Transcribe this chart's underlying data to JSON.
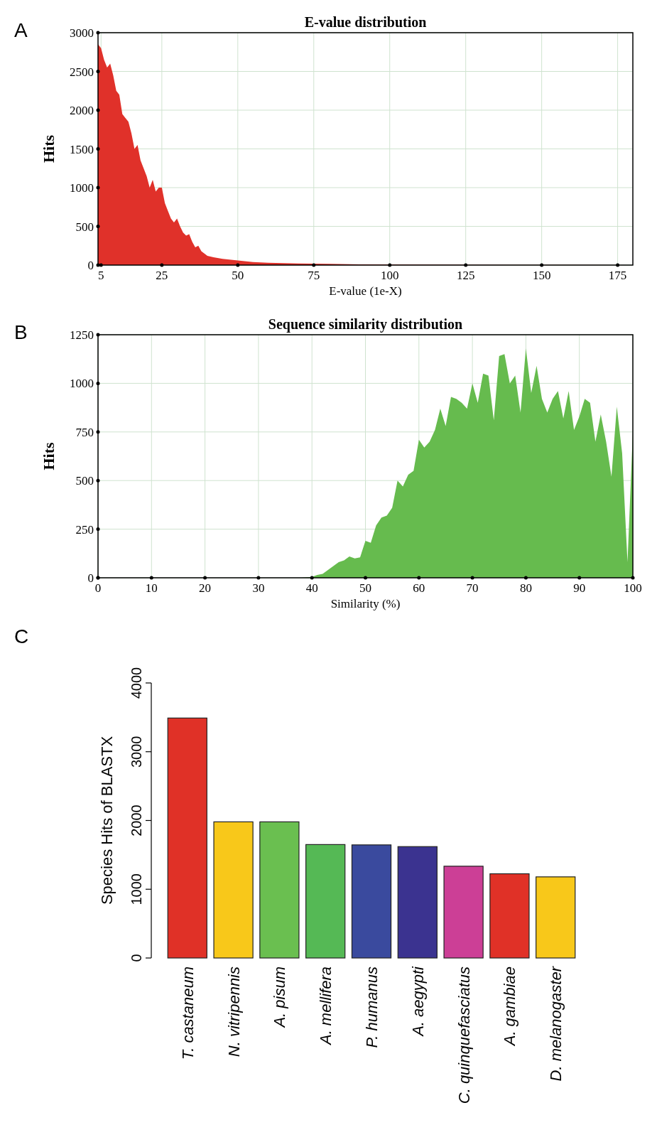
{
  "chart_data": [
    {
      "type": "area",
      "title": "E-value distribution",
      "xlabel": "E-value (1e-X)",
      "ylabel": "Hits",
      "annotations": [
        "A"
      ],
      "grid": true,
      "xlim": [
        4,
        180
      ],
      "xticks": [
        5,
        25,
        50,
        75,
        100,
        125,
        150,
        175
      ],
      "ylim": [
        0,
        3000
      ],
      "yticks": [
        0,
        500,
        1000,
        1500,
        2000,
        2500,
        3000
      ],
      "x": [
        4,
        5,
        6,
        7,
        8,
        9,
        10,
        11,
        12,
        13,
        14,
        15,
        16,
        17,
        18,
        19,
        20,
        21,
        22,
        23,
        24,
        25,
        26,
        27,
        28,
        29,
        30,
        31,
        32,
        33,
        34,
        35,
        36,
        37,
        38,
        39,
        40,
        42,
        45,
        50,
        55,
        60,
        70,
        80,
        90,
        100,
        120,
        140,
        160,
        180
      ],
      "series": [
        {
          "color": "#e0312a",
          "values": [
            2850,
            2800,
            2650,
            2550,
            2600,
            2450,
            2250,
            2200,
            1950,
            1900,
            1850,
            1700,
            1500,
            1550,
            1350,
            1250,
            1150,
            1000,
            1100,
            950,
            1000,
            1000,
            800,
            700,
            600,
            550,
            600,
            500,
            420,
            380,
            400,
            300,
            230,
            250,
            180,
            150,
            120,
            100,
            80,
            60,
            40,
            30,
            20,
            15,
            10,
            8,
            5,
            3,
            2,
            0
          ]
        }
      ]
    },
    {
      "type": "area",
      "title": "Sequence similarity distribution",
      "xlabel": "Similarity (%)",
      "ylabel": "Hits",
      "annotations": [
        "B"
      ],
      "grid": true,
      "xlim": [
        0,
        100
      ],
      "xticks": [
        0,
        10,
        20,
        30,
        40,
        50,
        60,
        70,
        80,
        90,
        100
      ],
      "ylim": [
        0,
        1250
      ],
      "yticks": [
        0,
        250,
        500,
        750,
        1000,
        1250
      ],
      "x": [
        0,
        38,
        40,
        41,
        42,
        43,
        44,
        45,
        46,
        47,
        48,
        49,
        50,
        51,
        52,
        53,
        54,
        55,
        56,
        57,
        58,
        59,
        60,
        61,
        62,
        63,
        64,
        65,
        66,
        67,
        68,
        69,
        70,
        71,
        72,
        73,
        74,
        75,
        76,
        77,
        78,
        79,
        80,
        81,
        82,
        83,
        84,
        85,
        86,
        87,
        88,
        89,
        90,
        91,
        92,
        93,
        94,
        95,
        96,
        97,
        98,
        99,
        100
      ],
      "series": [
        {
          "color": "#66bb4e",
          "values": [
            0,
            0,
            5,
            15,
            20,
            40,
            60,
            80,
            90,
            110,
            100,
            105,
            190,
            180,
            270,
            310,
            320,
            360,
            500,
            470,
            530,
            550,
            710,
            670,
            700,
            760,
            870,
            780,
            930,
            920,
            900,
            870,
            1000,
            900,
            1050,
            1040,
            810,
            1140,
            1150,
            1000,
            1040,
            850,
            1180,
            950,
            1090,
            920,
            850,
            920,
            960,
            820,
            960,
            760,
            830,
            920,
            900,
            700,
            840,
            700,
            520,
            880,
            640,
            80,
            750
          ]
        }
      ]
    },
    {
      "type": "bar",
      "ylabel": "Species Hits of BLASTX",
      "annotations": [
        "C"
      ],
      "ylim": [
        0,
        4000
      ],
      "yticks": [
        0,
        1000,
        2000,
        3000,
        4000
      ],
      "categories": [
        "T. castaneum",
        "N. vitripennis",
        "A. pisum",
        "A. mellifera",
        "P. humanus",
        "A. aegypti",
        "C. quinquefasciatus",
        "A. gambiae",
        "D. melanogaster"
      ],
      "values": [
        3490,
        1980,
        1980,
        1650,
        1645,
        1620,
        1335,
        1225,
        1180
      ],
      "colors": [
        "#e03127",
        "#f8c81a",
        "#6abf50",
        "#55b955",
        "#3a4a9e",
        "#3b3390",
        "#cc3f96",
        "#e03127",
        "#f8c81a"
      ]
    }
  ]
}
